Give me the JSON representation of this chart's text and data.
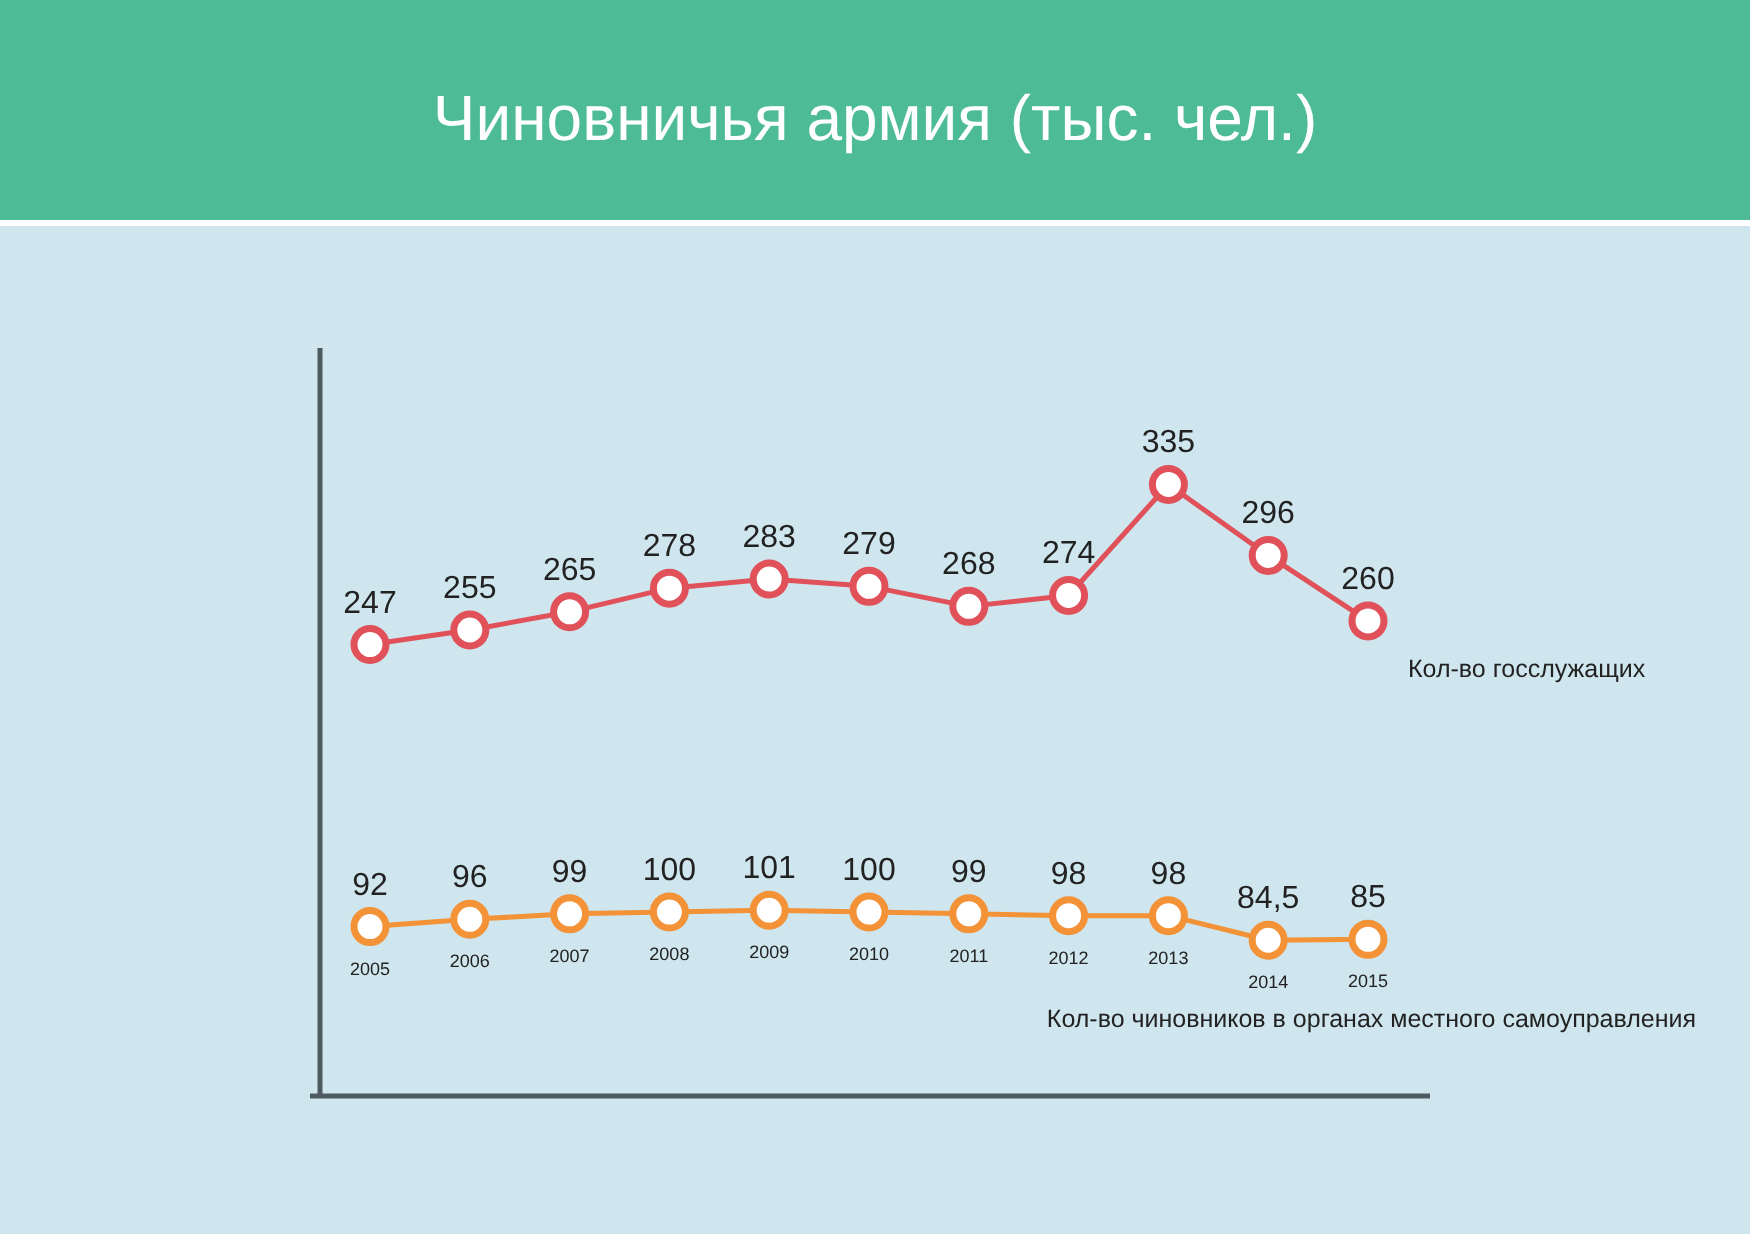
{
  "chart_data": {
    "type": "line",
    "title": "Чиновничья армия (тыс. чел.)",
    "categories": [
      "2005",
      "2006",
      "2007",
      "2008",
      "2009",
      "2010",
      "2011",
      "2012",
      "2013",
      "2014",
      "2015"
    ],
    "series": [
      {
        "name": "Кол-во госслужащих",
        "color": "#e0515a",
        "values": [
          247,
          255,
          265,
          278,
          283,
          279,
          268,
          274,
          335,
          296,
          260
        ],
        "value_labels": [
          "247",
          "255",
          "265",
          "278",
          "283",
          "279",
          "268",
          "274",
          "335",
          "296",
          "260"
        ]
      },
      {
        "name": "Кол-во чиновников в органах местного самоуправления",
        "color": "#f39237",
        "values": [
          92,
          96,
          99,
          100,
          101,
          100,
          99,
          98,
          98,
          84.5,
          85
        ],
        "value_labels": [
          "92",
          "96",
          "99",
          "100",
          "101",
          "100",
          "99",
          "98",
          "98",
          "84,5",
          "85"
        ]
      }
    ],
    "ylim": [
      0,
      410
    ],
    "tick_labels": "x",
    "marker": "circle",
    "line_style": "solid"
  }
}
